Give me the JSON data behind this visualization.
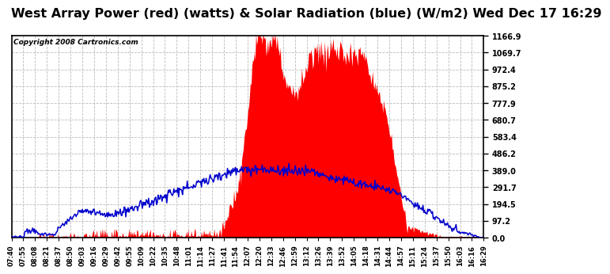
{
  "title": "West Array Power (red) (watts) & Solar Radiation (blue) (W/m2) Wed Dec 17 16:29",
  "copyright_text": "Copyright 2008 Cartronics.com",
  "bg_color": "#ffffff",
  "plot_bg_color": "#ffffff",
  "grid_color": "#bbbbbb",
  "ytick_values": [
    0.0,
    97.2,
    194.5,
    291.7,
    389.0,
    486.2,
    583.4,
    680.7,
    777.9,
    875.2,
    972.4,
    1069.7,
    1166.9
  ],
  "ymax": 1166.9,
  "red_color": "#ff0000",
  "blue_color": "#0000cc",
  "title_fontsize": 11.5,
  "copyright_fontsize": 6.5,
  "xtick_labels": [
    "07:40",
    "07:55",
    "08:08",
    "08:21",
    "08:37",
    "08:50",
    "09:03",
    "09:16",
    "09:29",
    "09:42",
    "09:55",
    "10:09",
    "10:22",
    "10:35",
    "10:48",
    "11:01",
    "11:14",
    "11:27",
    "11:41",
    "11:54",
    "12:07",
    "12:20",
    "12:33",
    "12:46",
    "12:59",
    "13:12",
    "13:26",
    "13:39",
    "13:52",
    "14:05",
    "14:18",
    "14:31",
    "14:44",
    "14:57",
    "15:11",
    "15:24",
    "15:37",
    "15:50",
    "16:03",
    "16:16",
    "16:29"
  ],
  "total_minutes": 529
}
